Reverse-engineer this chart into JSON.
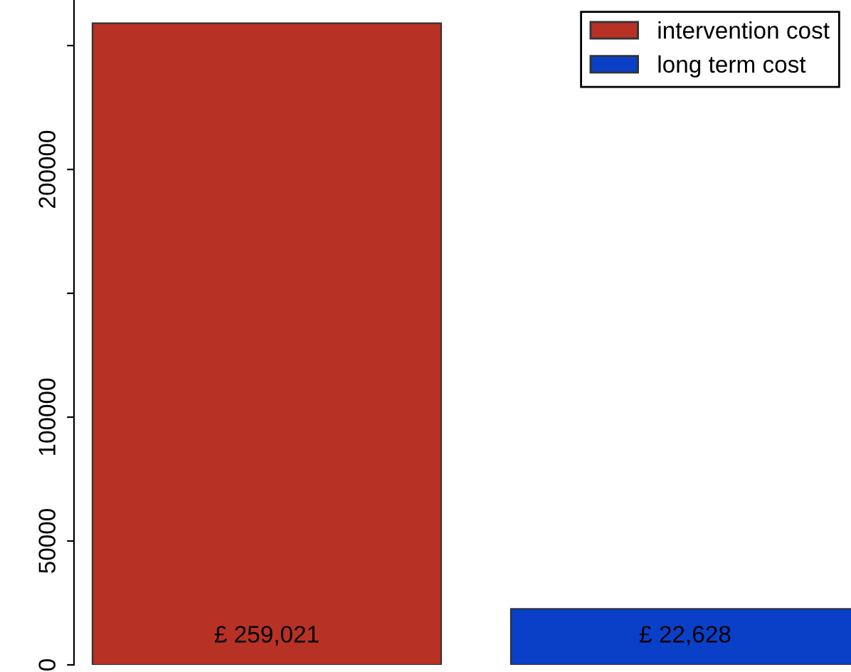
{
  "chart_data": {
    "type": "bar",
    "categories": [
      null,
      null
    ],
    "series": [
      {
        "name": "intervention cost",
        "color": "#b83125",
        "values": [
          259021,
          null
        ],
        "value_labels": [
          "£ 259,021",
          null
        ]
      },
      {
        "name": "long term cost",
        "color": "#0a40c8",
        "values": [
          null,
          22628
        ],
        "value_labels": [
          null,
          "£ 22,628"
        ]
      }
    ],
    "ylim": [
      0,
      268400
    ],
    "yticks": [
      0,
      50000,
      100000,
      {
        "value": 150000,
        "label": null
      },
      200000,
      {
        "value": 250000,
        "label": null
      }
    ],
    "stacked": true,
    "grid": false,
    "legend": "top right",
    "tick_labels": "y"
  }
}
